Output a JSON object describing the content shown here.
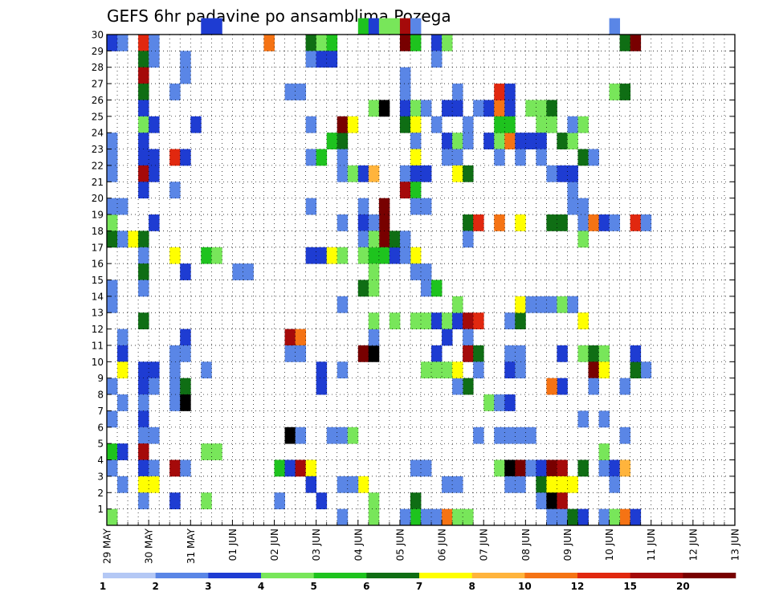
{
  "chart_data": {
    "type": "heatmap",
    "title": "GEFS 6hr padavine po ansamblima Pozega",
    "xlabel": "",
    "ylabel": "",
    "x_tick_labels": [
      "29 MAY",
      "30 MAY",
      "31 MAY",
      "01 JUN",
      "02 JUN",
      "03 JUN",
      "04 JUN",
      "05 JUN",
      "06 JUN",
      "07 JUN",
      "08 JUN",
      "09 JUN",
      "10 JUN",
      "11 JUN",
      "12 JUN",
      "13 JUN"
    ],
    "y_tick_labels": [
      "1",
      "2",
      "3",
      "4",
      "5",
      "6",
      "7",
      "8",
      "9",
      "10",
      "11",
      "12",
      "13",
      "14",
      "15",
      "16",
      "17",
      "18",
      "19",
      "20",
      "21",
      "22",
      "23",
      "24",
      "25",
      "26",
      "27",
      "28",
      "29",
      "30"
    ],
    "ylim": [
      0,
      30
    ],
    "steps_per_day": 4,
    "grid": "dotted",
    "colorbar": {
      "position": "bottom",
      "labels": [
        "1",
        "2",
        "3",
        "4",
        "5",
        "6",
        "7",
        "8",
        "10",
        "12",
        "15",
        "20"
      ],
      "colors": [
        "#b4c8f5",
        "#5a86e6",
        "#1e3cd2",
        "#78e65a",
        "#1ec31e",
        "#0f6e14",
        "#ffff00",
        "#ffb43c",
        "#f57314",
        "#e1280f",
        "#a50a0a",
        "#780000"
      ]
    },
    "cells": [
      [
        0,
        29,
        2
      ],
      [
        1,
        29,
        1
      ],
      [
        3,
        29,
        9
      ],
      [
        4,
        29,
        1
      ],
      [
        3,
        28,
        5
      ],
      [
        4,
        28,
        1
      ],
      [
        3,
        27,
        10
      ],
      [
        3,
        26,
        5
      ],
      [
        3,
        25,
        2
      ],
      [
        3,
        24,
        3
      ],
      [
        3,
        23,
        2
      ],
      [
        3,
        22,
        2
      ],
      [
        3,
        21,
        10
      ],
      [
        3,
        20,
        2
      ],
      [
        2,
        17,
        6
      ],
      [
        3,
        17,
        5
      ],
      [
        3,
        16,
        1
      ],
      [
        3,
        15,
        5
      ],
      [
        3,
        14,
        1
      ],
      [
        3,
        12,
        5
      ],
      [
        3,
        9,
        2
      ],
      [
        3,
        8,
        2
      ],
      [
        3,
        7,
        1
      ],
      [
        3,
        6,
        2
      ],
      [
        3,
        5,
        1
      ],
      [
        3,
        4,
        10
      ],
      [
        3,
        3,
        2
      ],
      [
        3,
        2,
        6
      ],
      [
        3,
        1,
        1
      ],
      [
        0,
        18,
        3
      ],
      [
        0,
        17,
        5
      ],
      [
        0,
        14,
        1
      ],
      [
        0,
        13,
        1
      ],
      [
        0,
        8,
        1
      ],
      [
        0,
        6,
        1
      ],
      [
        0,
        4,
        4
      ],
      [
        0,
        3,
        1
      ],
      [
        0,
        0,
        3
      ],
      [
        0,
        23,
        1
      ],
      [
        0,
        22,
        1
      ],
      [
        0,
        21,
        1
      ],
      [
        0,
        19,
        1
      ],
      [
        1,
        19,
        1
      ],
      [
        1,
        17,
        1
      ],
      [
        1,
        11,
        1
      ],
      [
        1,
        10,
        2
      ],
      [
        1,
        9,
        6
      ],
      [
        1,
        7,
        1
      ],
      [
        1,
        4,
        2
      ],
      [
        1,
        2,
        1
      ],
      [
        4,
        24,
        2
      ],
      [
        4,
        22,
        2
      ],
      [
        4,
        21,
        2
      ],
      [
        4,
        18,
        2
      ],
      [
        4,
        9,
        2
      ],
      [
        4,
        8,
        1
      ],
      [
        4,
        5,
        1
      ],
      [
        4,
        3,
        1
      ],
      [
        4,
        2,
        6
      ],
      [
        6,
        26,
        1
      ],
      [
        7,
        27,
        1
      ],
      [
        6,
        20,
        1
      ],
      [
        6,
        8,
        1
      ],
      [
        6,
        7,
        1
      ],
      [
        7,
        8,
        5
      ],
      [
        7,
        7,
        12
      ],
      [
        6,
        22,
        9
      ],
      [
        7,
        22,
        2
      ],
      [
        6,
        16,
        6
      ],
      [
        7,
        15,
        2
      ],
      [
        7,
        11,
        2
      ],
      [
        7,
        10,
        1
      ],
      [
        6,
        10,
        1
      ],
      [
        6,
        9,
        1
      ],
      [
        6,
        3,
        10
      ],
      [
        7,
        3,
        1
      ],
      [
        6,
        1,
        2
      ],
      [
        9,
        16,
        4
      ],
      [
        10,
        16,
        3
      ],
      [
        9,
        9,
        1
      ],
      [
        8,
        24,
        2
      ],
      [
        7,
        28,
        1
      ],
      [
        10,
        30,
        2
      ],
      [
        9,
        30,
        2
      ],
      [
        10,
        4,
        3
      ],
      [
        9,
        4,
        3
      ],
      [
        9,
        1,
        3
      ],
      [
        12,
        15,
        1
      ],
      [
        13,
        15,
        1
      ],
      [
        15,
        29,
        8
      ],
      [
        16,
        3,
        4
      ],
      [
        17,
        3,
        2
      ],
      [
        18,
        3,
        10
      ],
      [
        19,
        3,
        6
      ],
      [
        16,
        1,
        1
      ],
      [
        17,
        5,
        12
      ],
      [
        18,
        5,
        1
      ],
      [
        19,
        2,
        2
      ],
      [
        17,
        11,
        10
      ],
      [
        18,
        11,
        8
      ],
      [
        17,
        10,
        1
      ],
      [
        18,
        10,
        1
      ],
      [
        19,
        29,
        5
      ],
      [
        20,
        29,
        3
      ],
      [
        21,
        29,
        4
      ],
      [
        19,
        28,
        1
      ],
      [
        20,
        28,
        2
      ],
      [
        21,
        28,
        2
      ],
      [
        17,
        26,
        1
      ],
      [
        18,
        26,
        1
      ],
      [
        19,
        24,
        1
      ],
      [
        19,
        22,
        1
      ],
      [
        20,
        22,
        4
      ],
      [
        19,
        19,
        1
      ],
      [
        19,
        16,
        2
      ],
      [
        20,
        16,
        2
      ],
      [
        21,
        16,
        6
      ],
      [
        22,
        16,
        3
      ],
      [
        20,
        9,
        2
      ],
      [
        20,
        8,
        2
      ],
      [
        20,
        1,
        2
      ],
      [
        21,
        23,
        4
      ],
      [
        22,
        23,
        5
      ],
      [
        22,
        24,
        11
      ],
      [
        23,
        24,
        6
      ],
      [
        22,
        21,
        1
      ],
      [
        22,
        22,
        1
      ],
      [
        22,
        18,
        1
      ],
      [
        22,
        13,
        1
      ],
      [
        22,
        9,
        1
      ],
      [
        21,
        5,
        1
      ],
      [
        22,
        5,
        1
      ],
      [
        23,
        5,
        3
      ],
      [
        22,
        0,
        1
      ],
      [
        23,
        21,
        3
      ],
      [
        24,
        21,
        2
      ],
      [
        25,
        21,
        7
      ],
      [
        24,
        19,
        1
      ],
      [
        24,
        18,
        2
      ],
      [
        24,
        17,
        1
      ],
      [
        24,
        16,
        3
      ],
      [
        25,
        16,
        4
      ],
      [
        25,
        15,
        3
      ],
      [
        24,
        14,
        5
      ],
      [
        25,
        14,
        3
      ],
      [
        24,
        10,
        11
      ],
      [
        25,
        10,
        12
      ],
      [
        25,
        11,
        1
      ],
      [
        25,
        12,
        3
      ],
      [
        24,
        2,
        6
      ],
      [
        23,
        2,
        1
      ],
      [
        22,
        2,
        1
      ],
      [
        25,
        25,
        3
      ],
      [
        26,
        25,
        12
      ],
      [
        26,
        19,
        11
      ],
      [
        26,
        18,
        11
      ],
      [
        25,
        18,
        1
      ],
      [
        26,
        17,
        11
      ],
      [
        25,
        17,
        3
      ],
      [
        26,
        16,
        4
      ],
      [
        27,
        16,
        2
      ],
      [
        27,
        17,
        5
      ],
      [
        25,
        0,
        3
      ],
      [
        25,
        1,
        3
      ],
      [
        24,
        30,
        4
      ],
      [
        25,
        30,
        2
      ],
      [
        26,
        30,
        3
      ],
      [
        27,
        30,
        3
      ],
      [
        28,
        30,
        10
      ],
      [
        29,
        30,
        1
      ],
      [
        28,
        25,
        2
      ],
      [
        29,
        25,
        3
      ],
      [
        30,
        25,
        1
      ],
      [
        28,
        29,
        11
      ],
      [
        29,
        29,
        4
      ],
      [
        28,
        26,
        1
      ],
      [
        28,
        27,
        1
      ],
      [
        28,
        24,
        5
      ],
      [
        29,
        24,
        6
      ],
      [
        29,
        23,
        1
      ],
      [
        29,
        22,
        6
      ],
      [
        28,
        21,
        1
      ],
      [
        29,
        21,
        2
      ],
      [
        30,
        21,
        2
      ],
      [
        28,
        20,
        10
      ],
      [
        29,
        20,
        4
      ],
      [
        29,
        19,
        1
      ],
      [
        30,
        19,
        1
      ],
      [
        28,
        17,
        1
      ],
      [
        29,
        16,
        6
      ],
      [
        28,
        16,
        1
      ],
      [
        29,
        15,
        1
      ],
      [
        30,
        15,
        1
      ],
      [
        30,
        14,
        1
      ],
      [
        31,
        14,
        4
      ],
      [
        27,
        12,
        3
      ],
      [
        29,
        12,
        3
      ],
      [
        30,
        12,
        3
      ],
      [
        31,
        12,
        2
      ],
      [
        32,
        12,
        3
      ],
      [
        33,
        12,
        2
      ],
      [
        33,
        13,
        3
      ],
      [
        32,
        11,
        2
      ],
      [
        31,
        10,
        2
      ],
      [
        30,
        9,
        3
      ],
      [
        31,
        9,
        3
      ],
      [
        32,
        9,
        3
      ],
      [
        29,
        1,
        5
      ],
      [
        29,
        0,
        4
      ],
      [
        28,
        0,
        1
      ],
      [
        30,
        0,
        1
      ],
      [
        31,
        0,
        1
      ],
      [
        32,
        0,
        8
      ],
      [
        33,
        0,
        3
      ],
      [
        32,
        2,
        1
      ],
      [
        29,
        3,
        1
      ],
      [
        30,
        3,
        1
      ],
      [
        31,
        29,
        2
      ],
      [
        32,
        29,
        3
      ],
      [
        31,
        28,
        1
      ],
      [
        32,
        25,
        2
      ],
      [
        33,
        25,
        2
      ],
      [
        33,
        26,
        1
      ],
      [
        31,
        24,
        1
      ],
      [
        32,
        23,
        2
      ],
      [
        33,
        23,
        3
      ],
      [
        32,
        22,
        1
      ],
      [
        33,
        22,
        1
      ],
      [
        34,
        24,
        1
      ],
      [
        34,
        23,
        1
      ],
      [
        33,
        21,
        6
      ],
      [
        34,
        21,
        5
      ],
      [
        34,
        18,
        5
      ],
      [
        35,
        18,
        9
      ],
      [
        34,
        17,
        1
      ],
      [
        34,
        12,
        10
      ],
      [
        35,
        12,
        9
      ],
      [
        34,
        11,
        1
      ],
      [
        34,
        10,
        10
      ],
      [
        35,
        10,
        5
      ],
      [
        35,
        9,
        1
      ],
      [
        34,
        8,
        5
      ],
      [
        33,
        8,
        1
      ],
      [
        33,
        9,
        6
      ],
      [
        35,
        5,
        1
      ],
      [
        33,
        2,
        1
      ],
      [
        34,
        0,
        3
      ],
      [
        35,
        25,
        1
      ],
      [
        36,
        25,
        2
      ],
      [
        37,
        25,
        8
      ],
      [
        38,
        25,
        2
      ],
      [
        37,
        26,
        9
      ],
      [
        38,
        26,
        2
      ],
      [
        36,
        23,
        2
      ],
      [
        37,
        23,
        3
      ],
      [
        38,
        23,
        8
      ],
      [
        39,
        23,
        2
      ],
      [
        37,
        24,
        4
      ],
      [
        38,
        24,
        4
      ],
      [
        37,
        22,
        1
      ],
      [
        39,
        22,
        1
      ],
      [
        38,
        12,
        1
      ],
      [
        39,
        12,
        5
      ],
      [
        39,
        13,
        6
      ],
      [
        40,
        13,
        1
      ],
      [
        41,
        13,
        1
      ],
      [
        42,
        13,
        1
      ],
      [
        43,
        13,
        3
      ],
      [
        44,
        13,
        2
      ],
      [
        37,
        18,
        8
      ],
      [
        39,
        18,
        6
      ],
      [
        38,
        10,
        1
      ],
      [
        39,
        10,
        1
      ],
      [
        38,
        9,
        2
      ],
      [
        39,
        9,
        1
      ],
      [
        36,
        7,
        3
      ],
      [
        37,
        7,
        1
      ],
      [
        38,
        7,
        2
      ],
      [
        37,
        5,
        1
      ],
      [
        38,
        5,
        1
      ],
      [
        39,
        5,
        1
      ],
      [
        40,
        5,
        1
      ],
      [
        37,
        3,
        3
      ],
      [
        38,
        3,
        12
      ],
      [
        39,
        3,
        11
      ],
      [
        40,
        3,
        1
      ],
      [
        41,
        3,
        2
      ],
      [
        42,
        3,
        11
      ],
      [
        43,
        3,
        10
      ],
      [
        38,
        2,
        1
      ],
      [
        39,
        2,
        1
      ],
      [
        41,
        2,
        5
      ],
      [
        42,
        2,
        6
      ],
      [
        43,
        2,
        6
      ],
      [
        44,
        2,
        6
      ],
      [
        41,
        1,
        1
      ],
      [
        42,
        1,
        12
      ],
      [
        43,
        1,
        10
      ],
      [
        43,
        0,
        1
      ],
      [
        44,
        0,
        5
      ],
      [
        45,
        0,
        2
      ],
      [
        42,
        0,
        1
      ],
      [
        40,
        25,
        3
      ],
      [
        41,
        25,
        3
      ],
      [
        42,
        25,
        5
      ],
      [
        41,
        24,
        3
      ],
      [
        42,
        24,
        3
      ],
      [
        40,
        23,
        2
      ],
      [
        41,
        23,
        2
      ],
      [
        43,
        23,
        5
      ],
      [
        44,
        23,
        3
      ],
      [
        42,
        21,
        1
      ],
      [
        43,
        21,
        2
      ],
      [
        41,
        22,
        1
      ],
      [
        44,
        24,
        1
      ],
      [
        45,
        24,
        3
      ],
      [
        44,
        20,
        1
      ],
      [
        44,
        19,
        1
      ],
      [
        45,
        19,
        1
      ],
      [
        44,
        21,
        2
      ],
      [
        45,
        22,
        5
      ],
      [
        46,
        22,
        1
      ],
      [
        42,
        18,
        5
      ],
      [
        43,
        18,
        5
      ],
      [
        45,
        18,
        1
      ],
      [
        46,
        18,
        8
      ],
      [
        47,
        18,
        2
      ],
      [
        48,
        18,
        1
      ],
      [
        50,
        18,
        9
      ],
      [
        51,
        18,
        1
      ],
      [
        45,
        17,
        3
      ],
      [
        44,
        13,
        1
      ],
      [
        45,
        12,
        6
      ],
      [
        43,
        10,
        2
      ],
      [
        45,
        10,
        3
      ],
      [
        46,
        10,
        5
      ],
      [
        47,
        10,
        3
      ],
      [
        46,
        9,
        11
      ],
      [
        47,
        9,
        6
      ],
      [
        46,
        8,
        1
      ],
      [
        43,
        8,
        2
      ],
      [
        42,
        8,
        8
      ],
      [
        45,
        6,
        1
      ],
      [
        47,
        6,
        1
      ],
      [
        45,
        3,
        5
      ],
      [
        47,
        3,
        1
      ],
      [
        48,
        3,
        2
      ],
      [
        49,
        3,
        7
      ],
      [
        48,
        2,
        1
      ],
      [
        47,
        4,
        3
      ],
      [
        49,
        5,
        1
      ],
      [
        49,
        8,
        1
      ],
      [
        51,
        9,
        1
      ],
      [
        50,
        9,
        5
      ],
      [
        47,
        0,
        1
      ],
      [
        49,
        0,
        8
      ],
      [
        50,
        0,
        2
      ],
      [
        50,
        10,
        2
      ],
      [
        48,
        30,
        1
      ],
      [
        49,
        29,
        5
      ],
      [
        50,
        29,
        11
      ],
      [
        48,
        26,
        3
      ],
      [
        49,
        26,
        5
      ],
      [
        48,
        0,
        3
      ]
    ]
  }
}
